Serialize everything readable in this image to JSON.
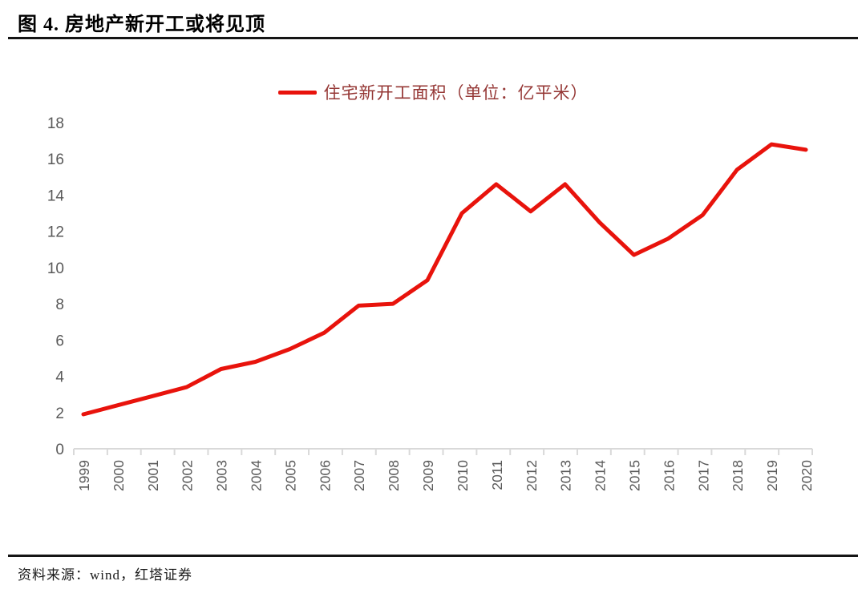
{
  "header": {
    "title": "图 4. 房地产新开工或将见顶"
  },
  "legend": {
    "label": "住宅新开工面积（单位：亿平米）"
  },
  "footer": {
    "source_text": "资料来源：wind，红塔证券"
  },
  "colors": {
    "line": "#e8130c",
    "legend_text": "#953735",
    "axis": "#d9d9d9",
    "tick_label": "#595959",
    "rule": "#151515"
  },
  "chart_data": {
    "type": "line",
    "title": "",
    "xlabel": "",
    "ylabel": "",
    "categories": [
      "1999",
      "2000",
      "2001",
      "2002",
      "2003",
      "2004",
      "2005",
      "2006",
      "2007",
      "2008",
      "2009",
      "2010",
      "2011",
      "2012",
      "2013",
      "2014",
      "2015",
      "2016",
      "2017",
      "2018",
      "2019",
      "2020"
    ],
    "series": [
      {
        "name": "住宅新开工面积（单位：亿平米）",
        "values": [
          1.9,
          2.4,
          2.9,
          3.4,
          4.4,
          4.8,
          5.5,
          6.4,
          7.9,
          8.0,
          9.3,
          13.0,
          14.6,
          13.1,
          14.6,
          12.5,
          10.7,
          11.6,
          12.9,
          15.4,
          16.8,
          16.5
        ]
      }
    ],
    "ylim": [
      0,
      18
    ],
    "ytick_step": 2,
    "yticks": [
      0,
      2,
      4,
      6,
      8,
      10,
      12,
      14,
      16,
      18
    ],
    "grid": false,
    "legend_position": "top-center",
    "x_label_rotation": -90
  }
}
